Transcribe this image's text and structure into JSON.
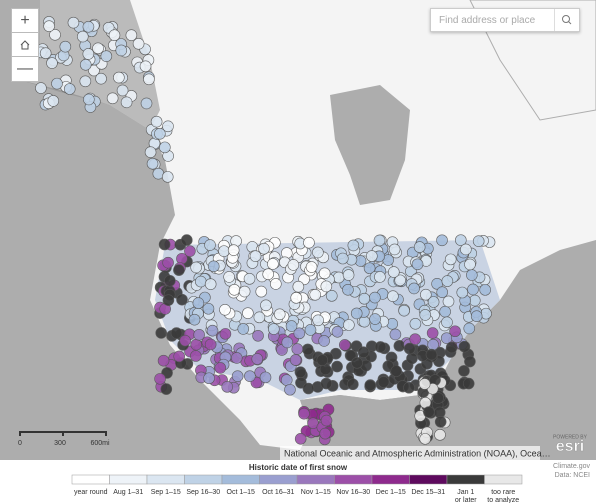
{
  "search": {
    "placeholder": "Find address or place"
  },
  "controls": {
    "zoom_in": "+",
    "zoom_out": "—"
  },
  "scale_bar": [
    "0",
    "300",
    "600mi"
  ],
  "attribution": "National Oceanic and Atmospheric Administration (NOAA), Ocea…",
  "esri": {
    "powered": "POWERED BY",
    "logo": "esri"
  },
  "credits": [
    "Climate.gov",
    "Data: NCEI"
  ],
  "legend": {
    "title": "Historic date of first snow",
    "items": [
      {
        "label": [
          "year round"
        ],
        "color": "#ffffff"
      },
      {
        "label": [
          "Aug 1–31"
        ],
        "color": "#eef3f8"
      },
      {
        "label": [
          "Sep 1–15"
        ],
        "color": "#dbe6f1"
      },
      {
        "label": [
          "Sep 16–30"
        ],
        "color": "#bfd2e6"
      },
      {
        "label": [
          "Oct 1–15"
        ],
        "color": "#a4bcdb"
      },
      {
        "label": [
          "Oct 16–31"
        ],
        "color": "#9a9fd0"
      },
      {
        "label": [
          "Nov 1–15"
        ],
        "color": "#9a78bd"
      },
      {
        "label": [
          "Nov 16–30"
        ],
        "color": "#9c4fa8"
      },
      {
        "label": [
          "Dec 1–15"
        ],
        "color": "#8e2a8d"
      },
      {
        "label": [
          "Dec 15–31"
        ],
        "color": "#5e0a5e"
      },
      {
        "label": [
          "Jan 1",
          "or later"
        ],
        "color": "#3a3a3a"
      },
      {
        "label": [
          "too rare",
          "to analyze"
        ],
        "color": "#e8e8e8"
      }
    ]
  }
}
